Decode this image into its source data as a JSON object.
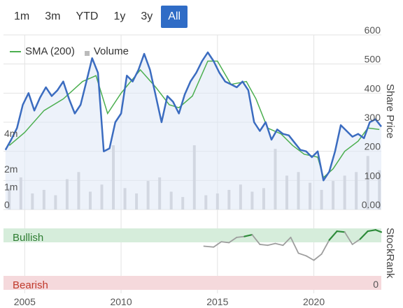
{
  "range_tabs": [
    {
      "label": "1m",
      "active": false
    },
    {
      "label": "3m",
      "active": false
    },
    {
      "label": "YTD",
      "active": false
    },
    {
      "label": "1y",
      "active": false
    },
    {
      "label": "3y",
      "active": false
    },
    {
      "label": "All",
      "active": true
    }
  ],
  "legend": {
    "sma_label": "SMA (200)",
    "volume_label": "Volume"
  },
  "colors": {
    "price": "#3b6cc0",
    "sma": "#4caf50",
    "volume": "#c4c4c8",
    "bullish_band": "#d6eddb",
    "bearish_band": "#f5d9dc",
    "stockrank_high": "#2e8b3a",
    "stockrank_low": "#9e9e9e",
    "accent": "#2f6cc6"
  },
  "chart_data": [
    {
      "type": "line",
      "title": "",
      "ylabel": "Share Price",
      "ylim": [
        0,
        600
      ],
      "y_ticks": [
        "600",
        "500",
        "400",
        "300",
        "200",
        "100",
        "0.00"
      ],
      "volume_ticks": [
        "4m",
        "2m",
        "1m",
        "0"
      ],
      "volume_ylim": [
        0,
        4500000
      ],
      "x_ticks": [
        "2005",
        "2010",
        "2015",
        "2020"
      ],
      "x_range": [
        2003.9,
        2023.5
      ],
      "grid": true,
      "legend_placement": "top-left",
      "series": [
        {
          "name": "SMA (200)",
          "x": [
            2004.2,
            2005.0,
            2006.0,
            2007.0,
            2008.0,
            2008.7,
            2009.3,
            2010.0,
            2011.0,
            2011.8,
            2012.5,
            2013.0,
            2013.7,
            2014.5,
            2015.0,
            2015.7,
            2016.5,
            2017.0,
            2017.6,
            2018.3,
            2018.9,
            2019.5,
            2020.2,
            2020.5,
            2021.0,
            2021.6,
            2022.3,
            2022.8,
            2023.4
          ],
          "values": [
            220,
            265,
            340,
            380,
            440,
            460,
            330,
            400,
            480,
            420,
            360,
            350,
            390,
            510,
            510,
            430,
            440,
            380,
            280,
            260,
            220,
            190,
            180,
            110,
            140,
            200,
            235,
            280,
            275
          ]
        },
        {
          "name": "Price",
          "x": [
            2004.0,
            2004.3,
            2004.6,
            2004.9,
            2005.2,
            2005.5,
            2005.8,
            2006.1,
            2006.4,
            2006.7,
            2007.0,
            2007.3,
            2007.6,
            2007.9,
            2008.2,
            2008.5,
            2008.8,
            2009.1,
            2009.4,
            2009.7,
            2010.0,
            2010.3,
            2010.6,
            2010.9,
            2011.2,
            2011.5,
            2011.8,
            2012.1,
            2012.4,
            2012.7,
            2013.0,
            2013.3,
            2013.6,
            2013.9,
            2014.2,
            2014.5,
            2014.8,
            2015.1,
            2015.4,
            2015.7,
            2016.0,
            2016.3,
            2016.6,
            2016.9,
            2017.2,
            2017.5,
            2017.8,
            2018.1,
            2018.4,
            2018.7,
            2019.0,
            2019.3,
            2019.6,
            2019.9,
            2020.2,
            2020.5,
            2020.8,
            2021.1,
            2021.4,
            2021.7,
            2022.0,
            2022.3,
            2022.6,
            2022.9,
            2023.2,
            2023.5
          ],
          "values": [
            205,
            240,
            280,
            360,
            400,
            340,
            385,
            420,
            390,
            410,
            440,
            380,
            330,
            360,
            440,
            520,
            470,
            200,
            210,
            300,
            330,
            460,
            440,
            480,
            535,
            480,
            390,
            300,
            390,
            370,
            330,
            395,
            440,
            470,
            510,
            540,
            510,
            470,
            440,
            430,
            420,
            440,
            410,
            300,
            270,
            300,
            240,
            275,
            260,
            255,
            230,
            205,
            200,
            180,
            200,
            100,
            130,
            200,
            290,
            270,
            250,
            260,
            245,
            300,
            310,
            285
          ]
        }
      ],
      "volume": {
        "x": [
          2004.2,
          2004.8,
          2005.4,
          2006.0,
          2006.6,
          2007.2,
          2007.8,
          2008.4,
          2009.0,
          2009.6,
          2010.2,
          2010.8,
          2011.4,
          2012.0,
          2012.6,
          2013.2,
          2013.8,
          2014.4,
          2015.0,
          2015.6,
          2016.2,
          2016.8,
          2017.4,
          2018.0,
          2018.6,
          2019.2,
          2019.8,
          2020.4,
          2021.0,
          2021.6,
          2022.2,
          2022.8,
          2023.4
        ],
        "values": [
          1200000,
          1800000,
          900000,
          1100000,
          800000,
          1700000,
          2100000,
          1000000,
          1400000,
          3600000,
          1200000,
          900000,
          1600000,
          1800000,
          1000000,
          700000,
          3600000,
          800000,
          900000,
          1100000,
          1400000,
          1000000,
          1200000,
          3400000,
          1900000,
          2100000,
          1500000,
          1100000,
          1600000,
          1900000,
          2100000,
          3000000,
          2200000
        ]
      }
    },
    {
      "type": "line",
      "title": "",
      "ylabel": "StockRank",
      "bands": [
        "Bullish",
        "Bearish"
      ],
      "y_ticks": [
        "0"
      ],
      "ylim": [
        0,
        100
      ],
      "series": [
        {
          "name": "StockRank",
          "x": [
            2014.3,
            2014.8,
            2015.2,
            2015.6,
            2016.0,
            2016.4,
            2016.8,
            2017.2,
            2017.6,
            2018.0,
            2018.4,
            2018.8,
            2019.2,
            2019.6,
            2020.0,
            2020.4,
            2020.8,
            2021.2,
            2021.6,
            2022.0,
            2022.4,
            2022.8,
            2023.2,
            2023.5
          ],
          "values": [
            58,
            56,
            68,
            66,
            78,
            80,
            84,
            62,
            60,
            64,
            60,
            78,
            42,
            36,
            26,
            40,
            72,
            92,
            90,
            62,
            74,
            92,
            95,
            90
          ]
        }
      ]
    }
  ]
}
